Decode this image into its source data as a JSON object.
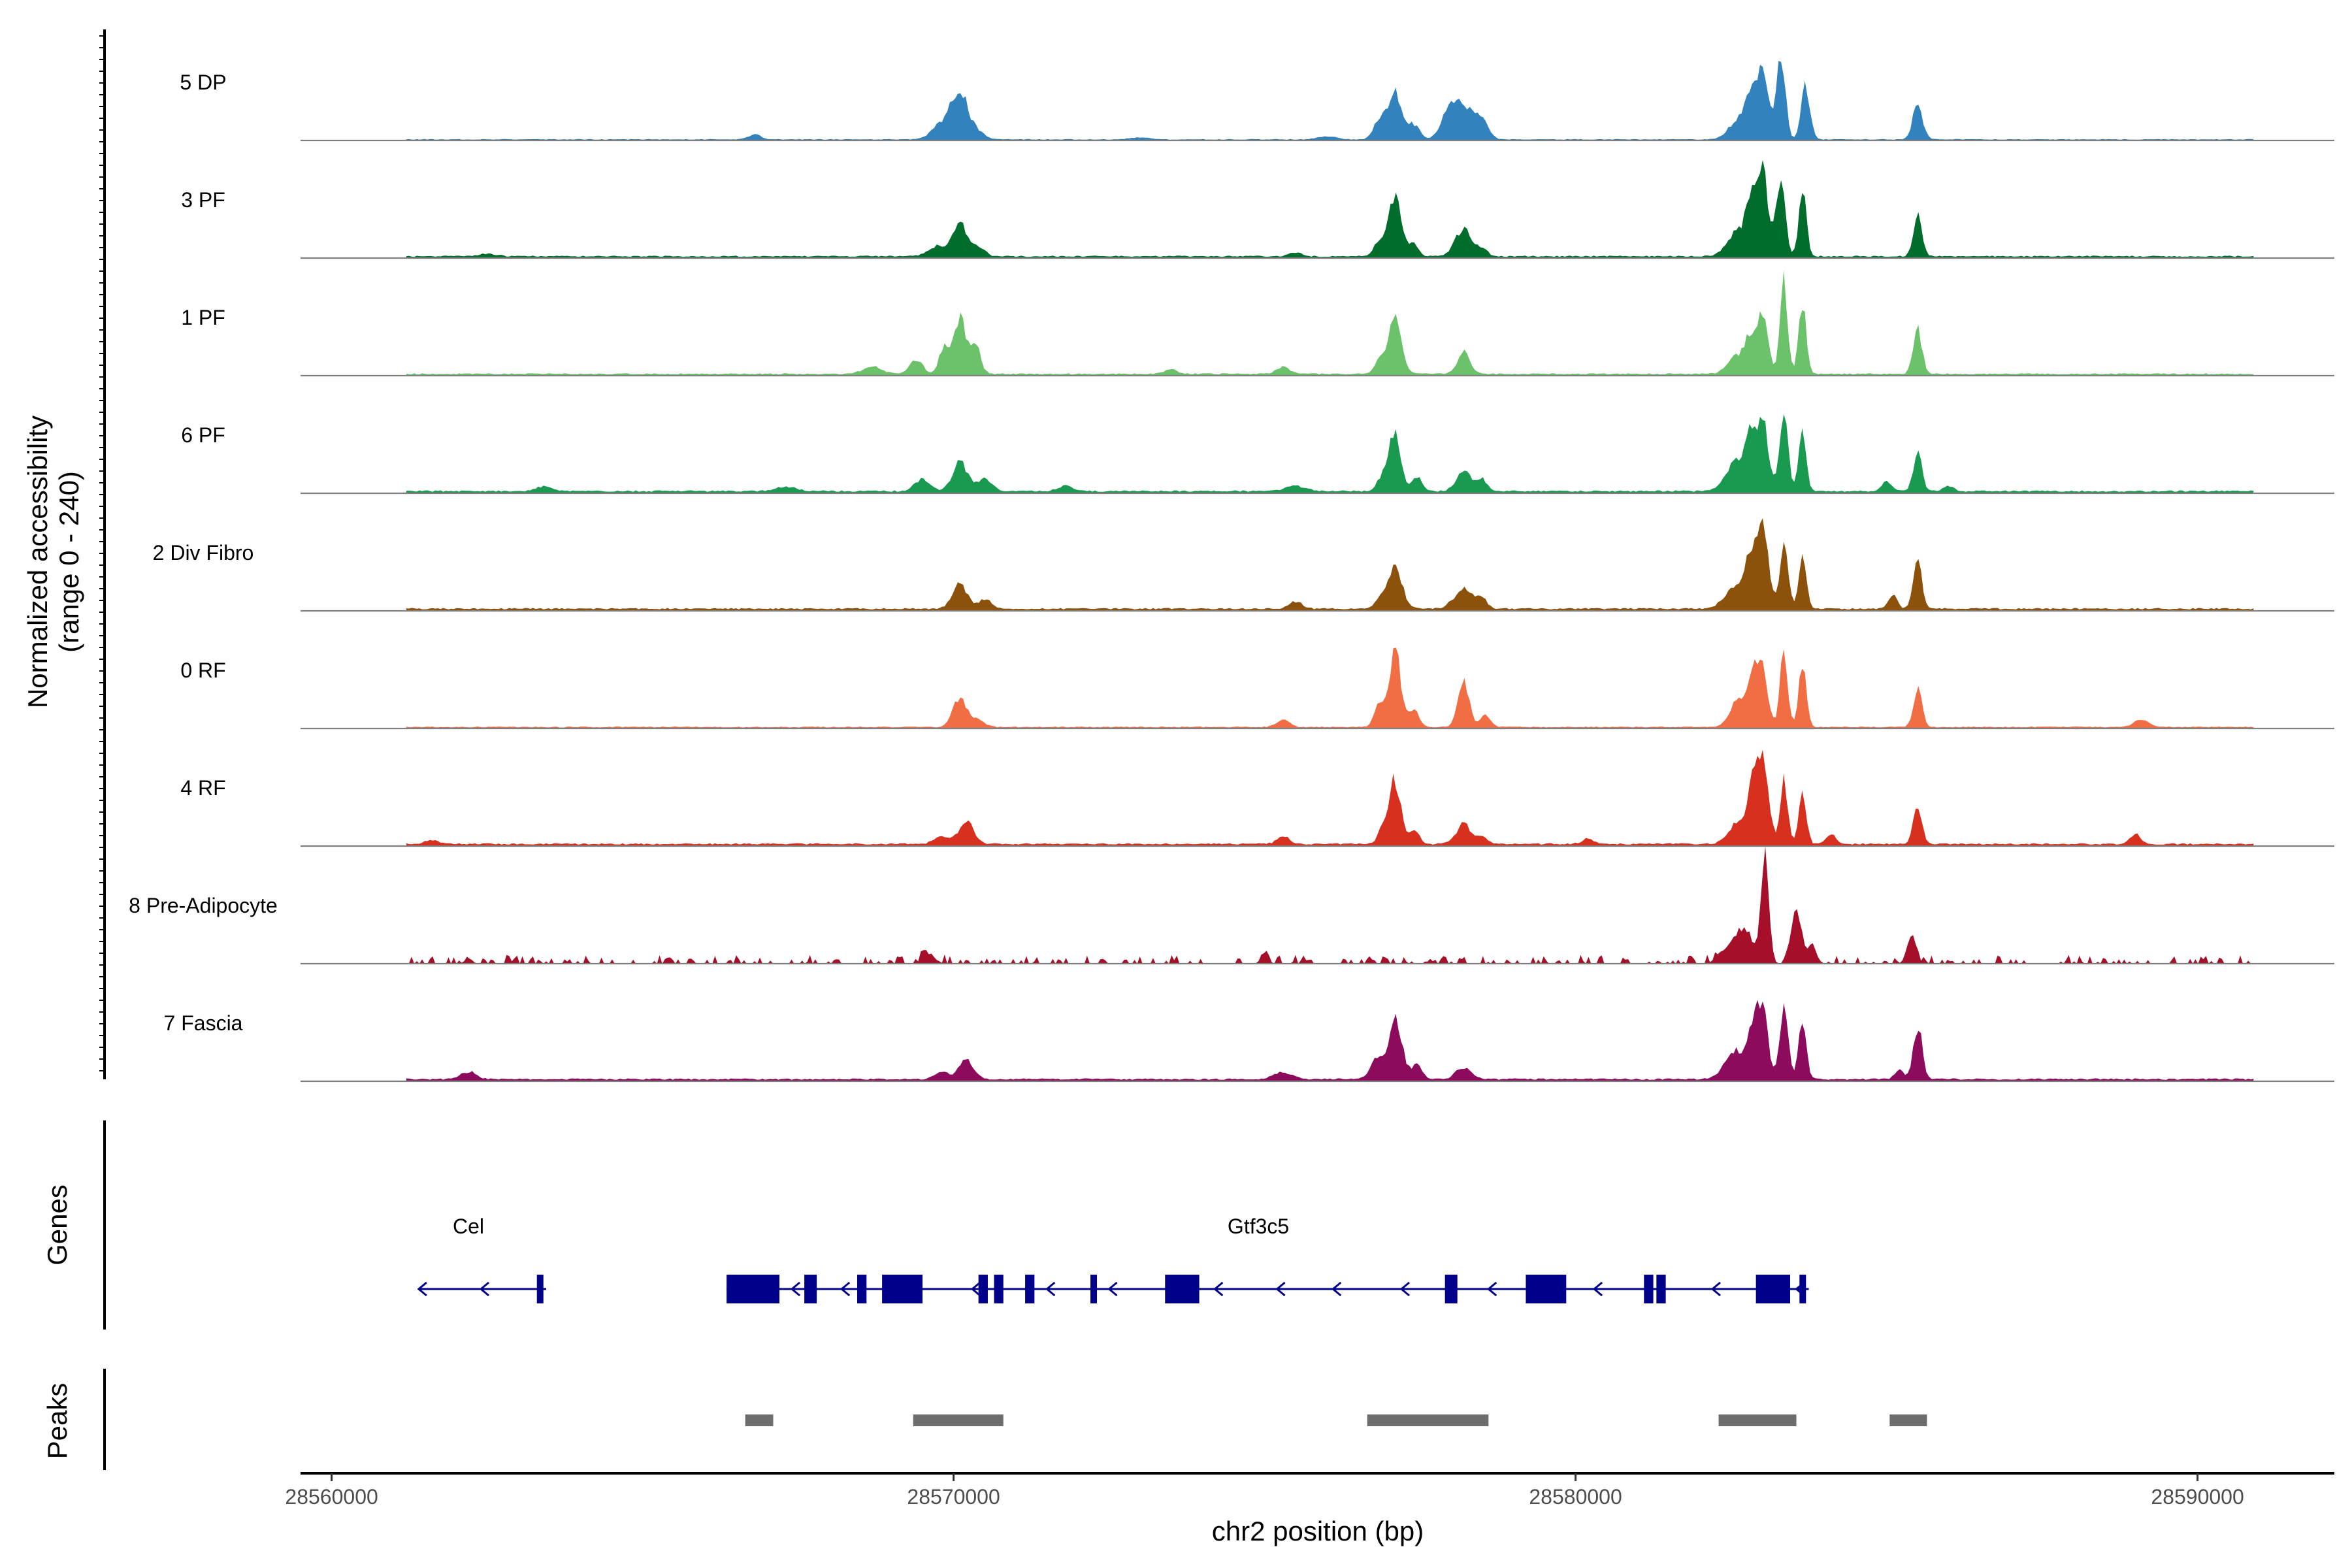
{
  "chart_data": {
    "type": "area",
    "title": "",
    "ylabel_line1": "Normalized accessibility",
    "ylabel_line2": "(range 0 - 240)",
    "ylim": [
      0,
      240
    ],
    "xlabel": "chr2 position (bp)",
    "xlim": [
      28559500,
      28592200
    ],
    "x_ticks": [
      28560000,
      28570000,
      28580000,
      28590000
    ],
    "x_tick_labels": [
      "28560000",
      "28570000",
      "28580000",
      "28590000"
    ],
    "series": [
      {
        "name": "5 DP",
        "color": "#3182bd",
        "baseline": 1.5,
        "noise": 1.5,
        "floor": 0,
        "peaks": [
          [
            28566800,
            10,
            100
          ],
          [
            28570100,
            100,
            130
          ],
          [
            28569800,
            30,
            150
          ],
          [
            28570400,
            15,
            100
          ],
          [
            28577100,
            95,
            110
          ],
          [
            28576850,
            40,
            90
          ],
          [
            28577400,
            30,
            90
          ],
          [
            28578200,
            70,
            180
          ],
          [
            28577950,
            40,
            120
          ],
          [
            28578500,
            30,
            100
          ],
          [
            28583000,
            140,
            100
          ],
          [
            28583300,
            170,
            70
          ],
          [
            28582650,
            45,
            160
          ],
          [
            28583700,
            110,
            70
          ],
          [
            28582800,
            60,
            70
          ],
          [
            28585500,
            70,
            80
          ],
          [
            28576000,
            6,
            150
          ],
          [
            28573000,
            4,
            150
          ]
        ]
      },
      {
        "name": "3 PF",
        "color": "#006d2c",
        "baseline": 2.5,
        "noise": 2.5,
        "floor": 0,
        "peaks": [
          [
            28570100,
            70,
            110
          ],
          [
            28569750,
            20,
            150
          ],
          [
            28570400,
            20,
            100
          ],
          [
            28577100,
            120,
            100
          ],
          [
            28576850,
            30,
            90
          ],
          [
            28577400,
            25,
            80
          ],
          [
            28578200,
            55,
            130
          ],
          [
            28578500,
            15,
            80
          ],
          [
            28583000,
            170,
            100
          ],
          [
            28583300,
            160,
            70
          ],
          [
            28582600,
            50,
            160
          ],
          [
            28583650,
            140,
            60
          ],
          [
            28582800,
            90,
            70
          ],
          [
            28585500,
            80,
            70
          ],
          [
            28575500,
            8,
            100
          ],
          [
            28562500,
            5,
            150
          ]
        ]
      },
      {
        "name": "1 PF",
        "color": "#6bc26a",
        "baseline": 2.5,
        "noise": 2.5,
        "floor": 0,
        "peaks": [
          [
            28570100,
            110,
            100
          ],
          [
            28569400,
            30,
            100
          ],
          [
            28569850,
            55,
            80
          ],
          [
            28570350,
            60,
            80
          ],
          [
            28577100,
            120,
            100
          ],
          [
            28576850,
            30,
            80
          ],
          [
            28578200,
            45,
            100
          ],
          [
            28583000,
            130,
            90
          ],
          [
            28583350,
            190,
            60
          ],
          [
            28582600,
            40,
            140
          ],
          [
            28583650,
            150,
            60
          ],
          [
            28582800,
            60,
            70
          ],
          [
            28585500,
            90,
            70
          ],
          [
            28575300,
            15,
            100
          ],
          [
            28573500,
            10,
            100
          ],
          [
            28568700,
            15,
            150
          ]
        ]
      },
      {
        "name": "6 PF",
        "color": "#1a9a51",
        "baseline": 3,
        "noise": 3,
        "floor": 0,
        "peaks": [
          [
            28570100,
            60,
            120
          ],
          [
            28569500,
            25,
            120
          ],
          [
            28570500,
            25,
            120
          ],
          [
            28577100,
            120,
            90
          ],
          [
            28576900,
            30,
            90
          ],
          [
            28577450,
            30,
            80
          ],
          [
            28578200,
            40,
            120
          ],
          [
            28578500,
            25,
            80
          ],
          [
            28583000,
            140,
            100
          ],
          [
            28583350,
            140,
            70
          ],
          [
            28582600,
            60,
            180
          ],
          [
            28583650,
            120,
            60
          ],
          [
            28582800,
            80,
            70
          ],
          [
            28585500,
            75,
            70
          ],
          [
            28575500,
            12,
            150
          ],
          [
            28563400,
            10,
            120
          ],
          [
            28567300,
            10,
            150
          ],
          [
            28571800,
            10,
            120
          ],
          [
            28585000,
            20,
            80
          ],
          [
            28586000,
            10,
            80
          ]
        ]
      },
      {
        "name": "2 Div Fibro",
        "color": "#8c510a",
        "baseline": 3,
        "noise": 3,
        "floor": 0,
        "peaks": [
          [
            28570100,
            50,
            120
          ],
          [
            28570500,
            20,
            100
          ],
          [
            28577100,
            85,
            110
          ],
          [
            28576850,
            20,
            80
          ],
          [
            28578200,
            40,
            150
          ],
          [
            28578500,
            20,
            80
          ],
          [
            28583000,
            160,
            100
          ],
          [
            28583350,
            120,
            70
          ],
          [
            28582600,
            50,
            180
          ],
          [
            28583650,
            100,
            60
          ],
          [
            28582800,
            70,
            80
          ],
          [
            28585500,
            100,
            70
          ],
          [
            28575500,
            15,
            100
          ],
          [
            28585100,
            30,
            70
          ]
        ]
      },
      {
        "name": "0 RF",
        "color": "#f16d43",
        "baseline": 2,
        "noise": 2,
        "floor": 0,
        "peaks": [
          [
            28570100,
            60,
            110
          ],
          [
            28570400,
            15,
            100
          ],
          [
            28577100,
            160,
            90
          ],
          [
            28576850,
            50,
            80
          ],
          [
            28577400,
            40,
            80
          ],
          [
            28578200,
            90,
            90
          ],
          [
            28578550,
            25,
            80
          ],
          [
            28583000,
            120,
            90
          ],
          [
            28583350,
            160,
            60
          ],
          [
            28582650,
            60,
            150
          ],
          [
            28583650,
            130,
            60
          ],
          [
            28582850,
            70,
            70
          ],
          [
            28585500,
            75,
            70
          ],
          [
            28575300,
            15,
            100
          ],
          [
            28589100,
            15,
            120
          ]
        ]
      },
      {
        "name": "4 RF",
        "color": "#d7301f",
        "baseline": 3,
        "noise": 3,
        "floor": 0,
        "peaks": [
          [
            28570200,
            45,
            120
          ],
          [
            28569800,
            15,
            120
          ],
          [
            28577100,
            130,
            90
          ],
          [
            28576900,
            30,
            80
          ],
          [
            28577400,
            30,
            80
          ],
          [
            28578200,
            40,
            120
          ],
          [
            28578500,
            15,
            80
          ],
          [
            28583000,
            160,
            100
          ],
          [
            28583350,
            130,
            60
          ],
          [
            28582650,
            50,
            160
          ],
          [
            28583650,
            110,
            60
          ],
          [
            28582850,
            80,
            70
          ],
          [
            28585500,
            70,
            70
          ],
          [
            28580200,
            10,
            100
          ],
          [
            28575300,
            15,
            100
          ],
          [
            28589000,
            20,
            80
          ],
          [
            28584100,
            20,
            80
          ],
          [
            28561600,
            8,
            100
          ]
        ]
      },
      {
        "name": "8 Pre-Adipocyte",
        "color": "#a50f2a",
        "baseline": 0,
        "noise": 7,
        "floor": 4,
        "peaks": [
          [
            28583050,
            240,
            60
          ],
          [
            28582700,
            70,
            140
          ],
          [
            28583550,
            120,
            80
          ],
          [
            28582400,
            25,
            120
          ],
          [
            28583800,
            40,
            70
          ],
          [
            28585400,
            60,
            70
          ],
          [
            28575000,
            20,
            60
          ],
          [
            28569600,
            20,
            100
          ],
          [
            28562200,
            10,
            60
          ]
        ]
      },
      {
        "name": "7 Fascia",
        "color": "#8c0b5d",
        "baseline": 3,
        "noise": 3,
        "floor": 0,
        "peaks": [
          [
            28577100,
            120,
            110
          ],
          [
            28576800,
            40,
            100
          ],
          [
            28577450,
            30,
            80
          ],
          [
            28578200,
            25,
            120
          ],
          [
            28570200,
            40,
            120
          ],
          [
            28569800,
            15,
            100
          ],
          [
            28583000,
            140,
            90
          ],
          [
            28583350,
            140,
            70
          ],
          [
            28582600,
            60,
            180
          ],
          [
            28583650,
            130,
            60
          ],
          [
            28582850,
            70,
            70
          ],
          [
            28585500,
            110,
            70
          ],
          [
            28585200,
            20,
            70
          ],
          [
            28562200,
            15,
            120
          ],
          [
            28575300,
            15,
            150
          ]
        ]
      }
    ],
    "genes_label": "Genes",
    "genes": [
      {
        "name": "Cel",
        "label_x": 28562200,
        "start": 28561400,
        "end": 28563450,
        "strand": "-",
        "thick": [
          [
            28563300,
            28563400
          ]
        ],
        "arrows": [
          28561400,
          28562400
        ],
        "color": "#00008b"
      },
      {
        "name": "Gtf3c5",
        "label_x": 28574900,
        "start": 28566350,
        "end": 28583750,
        "strand": "-",
        "thick": [
          [
            28566350,
            28567200
          ],
          [
            28567600,
            28567800
          ],
          [
            28568450,
            28568600
          ],
          [
            28568850,
            28569500
          ],
          [
            28570400,
            28570550
          ],
          [
            28570650,
            28570800
          ],
          [
            28571150,
            28571300
          ],
          [
            28572200,
            28572300
          ],
          [
            28573400,
            28573950
          ],
          [
            28577900,
            28578100
          ],
          [
            28579200,
            28579850
          ],
          [
            28581100,
            28581250
          ],
          [
            28581300,
            28581450
          ],
          [
            28582900,
            28583450
          ],
          [
            28583600,
            28583700
          ]
        ],
        "arrows": [
          28567400,
          28568200,
          28570300,
          28571500,
          28572500,
          28574200,
          28575200,
          28576100,
          28577200,
          28578600,
          28580300,
          28582200,
          28583550
        ],
        "color": "#00008b"
      }
    ],
    "peaks_label": "Peaks",
    "peak_regions": [
      [
        28566650,
        28567100
      ],
      [
        28569350,
        28570800
      ],
      [
        28576650,
        28578600
      ],
      [
        28582300,
        28583550
      ],
      [
        28585050,
        28585650
      ]
    ],
    "peak_color": "#6d6d6d"
  }
}
